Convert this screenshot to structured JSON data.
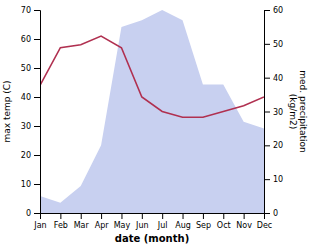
{
  "chart_data": {
    "type": "line",
    "categories": [
      "Jan",
      "Feb",
      "Mar",
      "Apr",
      "May",
      "Jun",
      "Jul",
      "Aug",
      "Sep",
      "Oct",
      "Nov",
      "Dec"
    ],
    "series": [
      {
        "type": "area",
        "axis": "y2",
        "color": "#c8d0f0",
        "values": [
          5,
          3,
          8,
          20,
          55,
          57,
          60,
          57,
          38,
          38,
          27,
          25
        ]
      },
      {
        "type": "line",
        "color": "#b03050",
        "values": [
          44,
          57,
          58,
          61,
          57,
          40,
          35,
          33,
          33,
          35,
          37,
          40
        ]
      }
    ],
    "x_label": "date (month)",
    "y_label": "max temp (C)",
    "y2_label": "med. precipitation\n(kg/m2)",
    "ylim": [
      0,
      70
    ],
    "yticks": [
      0,
      10,
      20,
      30,
      40,
      50,
      60,
      70
    ],
    "y2lim": [
      0,
      60
    ],
    "y2ticks": [
      0,
      10,
      20,
      30,
      40,
      50,
      60
    ]
  }
}
